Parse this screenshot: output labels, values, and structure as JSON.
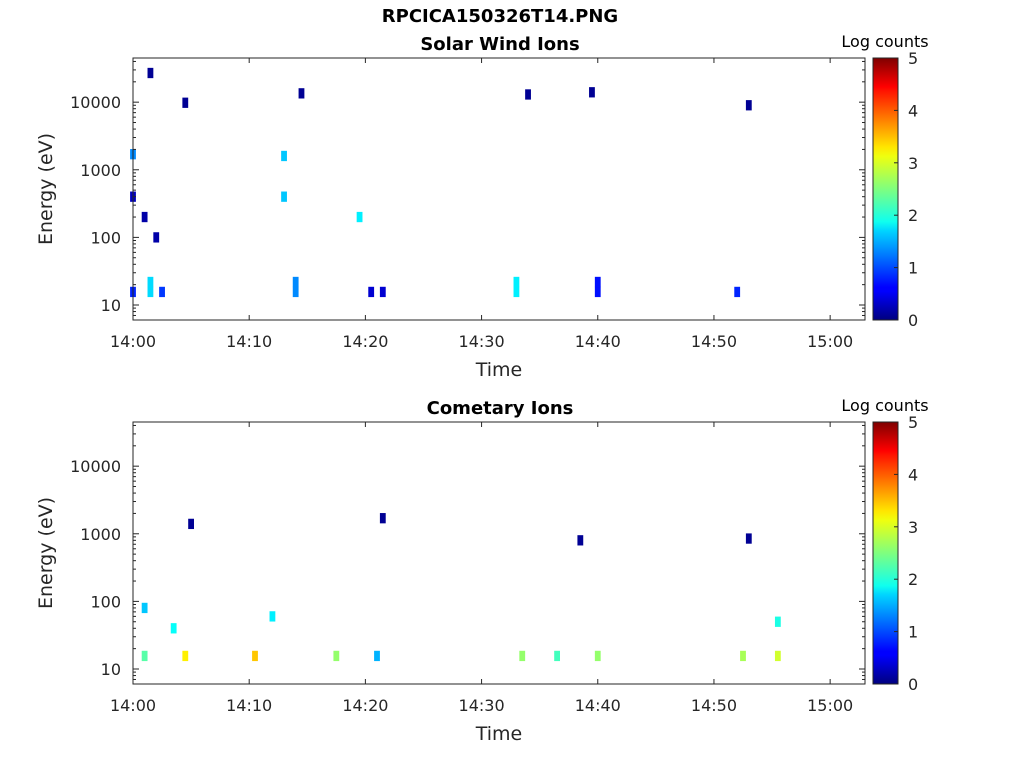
{
  "figure": {
    "title": "RPCICA150326T14.PNG"
  },
  "colorbar": {
    "label": "Log counts",
    "ticks": [
      "0",
      "1",
      "2",
      "3",
      "4",
      "5"
    ],
    "range": [
      0,
      5
    ],
    "colormap": "jet"
  },
  "chart_data": [
    {
      "type": "heatmap",
      "title": "Solar Wind Ions",
      "xlabel": "Time",
      "ylabel": "Energy (eV)",
      "ylog": true,
      "xlim": [
        "14:00",
        "15:03"
      ],
      "ylim": [
        6,
        45000
      ],
      "xticks": [
        "14:00",
        "14:10",
        "14:20",
        "14:30",
        "14:40",
        "14:50",
        "15:00"
      ],
      "yticks": [
        "10",
        "100",
        "1000",
        "10000"
      ],
      "clabel": "Log counts",
      "clim": [
        0,
        5
      ],
      "cells": [
        {
          "t": "14:00:00",
          "e": 15.6,
          "c": 0.8
        },
        {
          "t": "14:01:30",
          "e": 15.6,
          "c": 1.7
        },
        {
          "t": "14:01:30",
          "e": 21.9,
          "c": 1.7
        },
        {
          "t": "14:02:30",
          "e": 15.6,
          "c": 0.9
        },
        {
          "t": "14:00:00",
          "e": 1700,
          "c": 1.3
        },
        {
          "t": "14:00:00",
          "e": 400,
          "c": 0.3
        },
        {
          "t": "14:01:00",
          "e": 200,
          "c": 0.2
        },
        {
          "t": "14:02:00",
          "e": 100,
          "c": 0.2
        },
        {
          "t": "14:01:30",
          "e": 27000,
          "c": 0.1
        },
        {
          "t": "14:04:30",
          "e": 9800,
          "c": 0.1
        },
        {
          "t": "14:14:00",
          "e": 21.9,
          "c": 1.3
        },
        {
          "t": "14:14:00",
          "e": 15.6,
          "c": 1.3
        },
        {
          "t": "14:13:00",
          "e": 400,
          "c": 1.6
        },
        {
          "t": "14:13:00",
          "e": 1600,
          "c": 1.6
        },
        {
          "t": "14:14:30",
          "e": 13500,
          "c": 0.1
        },
        {
          "t": "14:19:30",
          "e": 200,
          "c": 1.8
        },
        {
          "t": "14:20:30",
          "e": 15.6,
          "c": 0.4
        },
        {
          "t": "14:21:30",
          "e": 15.6,
          "c": 0.4
        },
        {
          "t": "14:33:00",
          "e": 15.6,
          "c": 1.8
        },
        {
          "t": "14:33:00",
          "e": 21.9,
          "c": 1.8
        },
        {
          "t": "14:34:00",
          "e": 13000,
          "c": 0.1
        },
        {
          "t": "14:40:00",
          "e": 15.6,
          "c": 0.7
        },
        {
          "t": "14:40:00",
          "e": 21.9,
          "c": 0.7
        },
        {
          "t": "14:39:30",
          "e": 14000,
          "c": 0.1
        },
        {
          "t": "14:52:00",
          "e": 15.6,
          "c": 0.8
        },
        {
          "t": "14:53:00",
          "e": 9000,
          "c": 0.1
        }
      ]
    },
    {
      "type": "heatmap",
      "title": "Cometary Ions",
      "xlabel": "Time",
      "ylabel": "Energy (eV)",
      "ylog": true,
      "xlim": [
        "14:00",
        "15:03"
      ],
      "ylim": [
        6,
        45000
      ],
      "xticks": [
        "14:00",
        "14:10",
        "14:20",
        "14:30",
        "14:40",
        "14:50",
        "15:00"
      ],
      "yticks": [
        "10",
        "100",
        "1000",
        "10000"
      ],
      "clabel": "Log counts",
      "clim": [
        0,
        5
      ],
      "cells": [
        {
          "t": "14:01:00",
          "e": 15.6,
          "c": 2.3
        },
        {
          "t": "14:04:30",
          "e": 15.6,
          "c": 3.2
        },
        {
          "t": "14:10:30",
          "e": 15.6,
          "c": 3.4
        },
        {
          "t": "14:17:30",
          "e": 15.6,
          "c": 2.6
        },
        {
          "t": "14:21:00",
          "e": 15.6,
          "c": 1.5
        },
        {
          "t": "14:33:30",
          "e": 15.6,
          "c": 2.6
        },
        {
          "t": "14:36:30",
          "e": 15.6,
          "c": 2.2
        },
        {
          "t": "14:40:00",
          "e": 15.6,
          "c": 2.6
        },
        {
          "t": "14:52:30",
          "e": 15.6,
          "c": 2.7
        },
        {
          "t": "14:55:30",
          "e": 15.6,
          "c": 2.9
        },
        {
          "t": "14:01:00",
          "e": 80,
          "c": 1.6
        },
        {
          "t": "14:03:30",
          "e": 40,
          "c": 1.9
        },
        {
          "t": "14:12:00",
          "e": 60,
          "c": 1.8
        },
        {
          "t": "14:55:30",
          "e": 50,
          "c": 2.0
        },
        {
          "t": "14:05:00",
          "e": 1400,
          "c": 0.1
        },
        {
          "t": "14:21:30",
          "e": 1700,
          "c": 0.1
        },
        {
          "t": "14:38:30",
          "e": 800,
          "c": 0.1
        },
        {
          "t": "14:53:00",
          "e": 850,
          "c": 0.1
        }
      ]
    }
  ]
}
